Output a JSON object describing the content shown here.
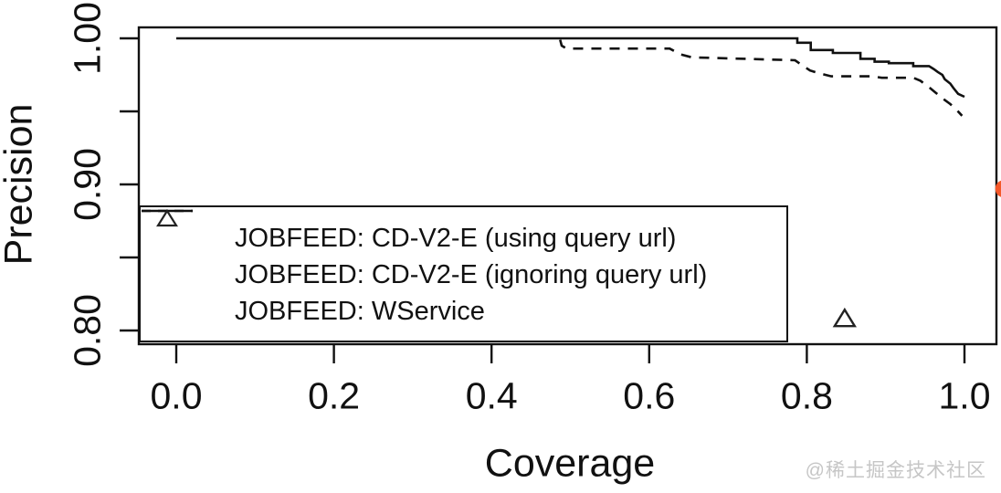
{
  "chart_data": {
    "type": "line",
    "title": "",
    "xlabel": "Coverage",
    "ylabel": "Precision",
    "xlim": [
      0.0,
      1.0
    ],
    "ylim": [
      0.8,
      1.0
    ],
    "grid": false,
    "legend_position": "bottom-left",
    "x_ticks": [
      {
        "value": 0.0,
        "label": "0.0"
      },
      {
        "value": 0.2,
        "label": "0.2"
      },
      {
        "value": 0.4,
        "label": "0.4"
      },
      {
        "value": 0.6,
        "label": "0.6"
      },
      {
        "value": 0.8,
        "label": "0.8"
      },
      {
        "value": 1.0,
        "label": "1.0"
      }
    ],
    "y_ticks": [
      {
        "value": 1.0,
        "label": "1.00"
      },
      {
        "value": 0.95,
        "label": ""
      },
      {
        "value": 0.9,
        "label": "0.90"
      },
      {
        "value": 0.85,
        "label": ""
      },
      {
        "value": 0.8,
        "label": "0.80"
      }
    ],
    "series": [
      {
        "name": "JOBFEED: CD-V2-E (using query url)",
        "style": "solid",
        "color": "#111111",
        "points": [
          [
            0.0,
            1.0
          ],
          [
            0.788,
            1.0
          ],
          [
            0.788,
            0.997
          ],
          [
            0.805,
            0.997
          ],
          [
            0.805,
            0.992
          ],
          [
            0.833,
            0.992
          ],
          [
            0.833,
            0.99
          ],
          [
            0.868,
            0.99
          ],
          [
            0.868,
            0.986
          ],
          [
            0.886,
            0.986
          ],
          [
            0.886,
            0.984
          ],
          [
            0.904,
            0.984
          ],
          [
            0.904,
            0.983
          ],
          [
            0.935,
            0.983
          ],
          [
            0.935,
            0.981
          ],
          [
            0.955,
            0.981
          ],
          [
            0.961,
            0.979
          ],
          [
            0.966,
            0.977
          ],
          [
            0.972,
            0.975
          ],
          [
            0.975,
            0.972
          ],
          [
            0.982,
            0.969
          ],
          [
            0.986,
            0.966
          ],
          [
            0.992,
            0.962
          ],
          [
            1.0,
            0.96
          ]
        ]
      },
      {
        "name": "JOBFEED: CD-V2-E (ignoring query url)",
        "style": "dashed",
        "color": "#111111",
        "points": [
          [
            0.487,
            0.999
          ],
          [
            0.489,
            0.995
          ],
          [
            0.495,
            0.993
          ],
          [
            0.626,
            0.993
          ],
          [
            0.64,
            0.989
          ],
          [
            0.654,
            0.987
          ],
          [
            0.785,
            0.985
          ],
          [
            0.793,
            0.982
          ],
          [
            0.804,
            0.978
          ],
          [
            0.816,
            0.976
          ],
          [
            0.831,
            0.974
          ],
          [
            0.883,
            0.974
          ],
          [
            0.895,
            0.973
          ],
          [
            0.935,
            0.973
          ],
          [
            0.944,
            0.971
          ],
          [
            0.954,
            0.967
          ],
          [
            0.963,
            0.963
          ],
          [
            0.972,
            0.959
          ],
          [
            0.982,
            0.955
          ],
          [
            0.99,
            0.951
          ],
          [
            0.997,
            0.947
          ]
        ]
      },
      {
        "name": "JOBFEED: WService",
        "style": "point",
        "marker": "triangle",
        "color": "#222222",
        "points": [
          [
            0.848,
            0.808
          ]
        ]
      }
    ],
    "extra_marker": {
      "x": 1.05,
      "y": 0.897,
      "color": "#f4582a",
      "note": "marker clipped at right plot edge"
    }
  },
  "watermark": "@稀土掘金技术社区"
}
